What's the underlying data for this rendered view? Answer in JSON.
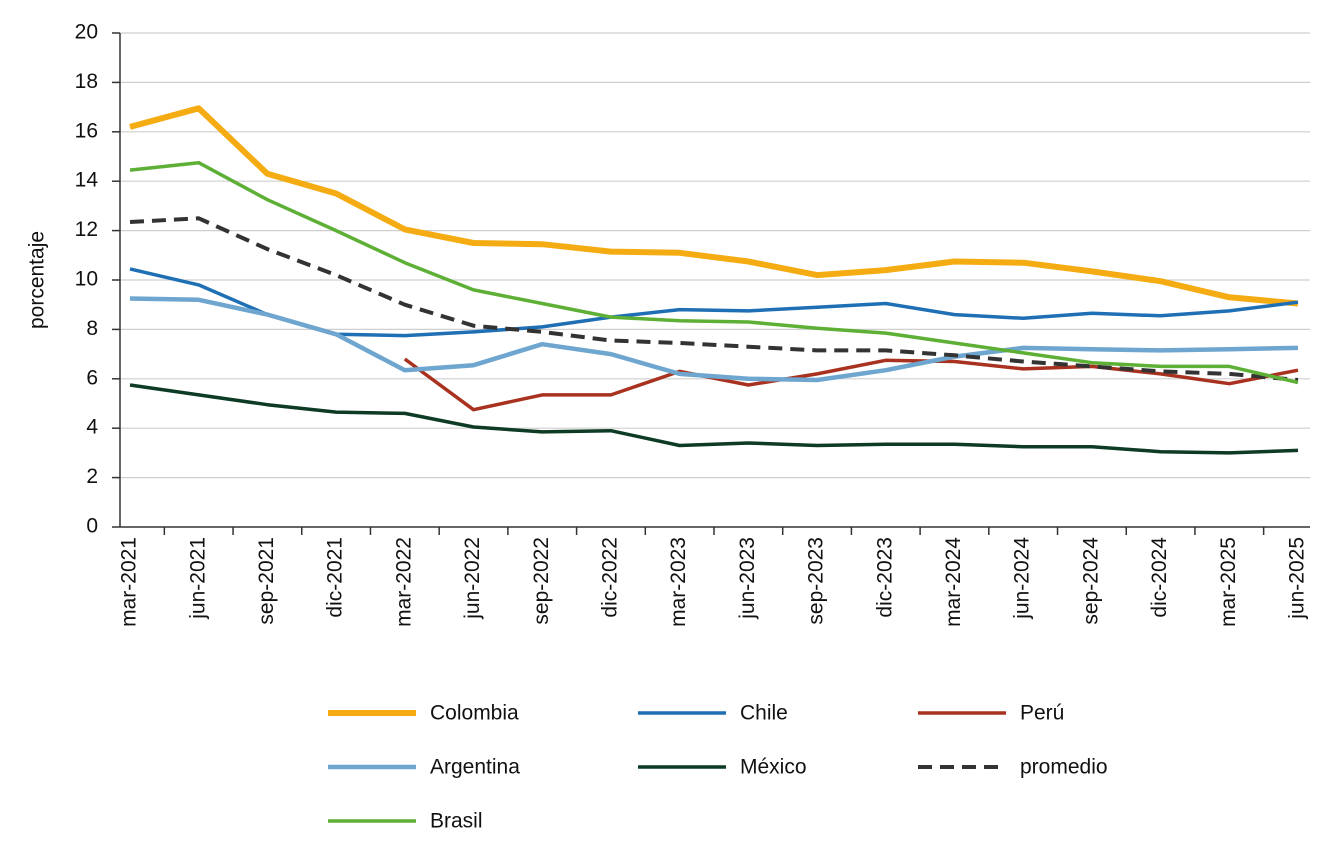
{
  "chart_data": {
    "type": "line",
    "y_label": "porcentaje",
    "categories": [
      "mar-2021",
      "jun-2021",
      "sep-2021",
      "dic-2021",
      "mar-2022",
      "jun-2022",
      "sep-2022",
      "dic-2022",
      "mar-2023",
      "jun-2023",
      "sep-2023",
      "dic-2023",
      "mar-2024",
      "jun-2024",
      "sep-2024",
      "dic-2024",
      "mar-2025",
      "jun-2025"
    ],
    "ylim": [
      0,
      20
    ],
    "yticks": [
      0,
      2,
      4,
      6,
      8,
      10,
      12,
      14,
      16,
      18,
      20
    ],
    "grid": true,
    "series": [
      {
        "name": "Colombia",
        "color": "#f5ac13",
        "width": 6,
        "values": [
          16.2,
          16.95,
          14.3,
          13.5,
          12.05,
          11.5,
          11.45,
          11.15,
          11.1,
          10.75,
          10.2,
          10.4,
          10.75,
          10.7,
          10.35,
          9.95,
          9.3,
          9.05
        ]
      },
      {
        "name": "Chile",
        "color": "#1f6fb5",
        "width": 3.5,
        "values": [
          10.45,
          9.8,
          8.6,
          7.8,
          7.75,
          7.9,
          8.1,
          8.5,
          8.8,
          8.75,
          8.9,
          9.05,
          8.6,
          8.45,
          8.65,
          8.55,
          8.75,
          9.1
        ]
      },
      {
        "name": "Perú",
        "color": "#a8321f",
        "width": 3.5,
        "values": [
          null,
          null,
          null,
          null,
          6.8,
          4.75,
          5.35,
          5.35,
          6.3,
          5.75,
          6.2,
          6.75,
          6.7,
          6.4,
          6.5,
          6.2,
          5.8,
          6.35
        ]
      },
      {
        "name": "Argentina",
        "color": "#6fa6cf",
        "width": 4.5,
        "values": [
          9.25,
          9.2,
          8.6,
          7.8,
          6.35,
          6.55,
          7.4,
          7.0,
          6.2,
          6.0,
          5.95,
          6.35,
          6.9,
          7.25,
          7.2,
          7.15,
          7.2,
          7.25
        ]
      },
      {
        "name": "México",
        "color": "#0d3b24",
        "width": 3.5,
        "values": [
          5.75,
          5.35,
          4.95,
          4.65,
          4.6,
          4.05,
          3.85,
          3.9,
          3.3,
          3.4,
          3.3,
          3.35,
          3.35,
          3.25,
          3.25,
          3.05,
          3.0,
          3.1
        ]
      },
      {
        "name": "promedio",
        "color": "#333333",
        "width": 4,
        "dash": true,
        "values": [
          12.35,
          12.5,
          11.25,
          10.2,
          9.0,
          8.15,
          7.9,
          7.55,
          7.45,
          7.3,
          7.15,
          7.15,
          6.95,
          6.7,
          6.5,
          6.3,
          6.2,
          5.95
        ]
      },
      {
        "name": "Brasil",
        "color": "#5db035",
        "width": 3.5,
        "values": [
          14.45,
          14.75,
          13.25,
          12.0,
          10.7,
          9.6,
          9.05,
          8.5,
          8.35,
          8.3,
          8.05,
          7.85,
          7.45,
          7.05,
          6.65,
          6.5,
          6.5,
          5.85
        ]
      }
    ]
  }
}
